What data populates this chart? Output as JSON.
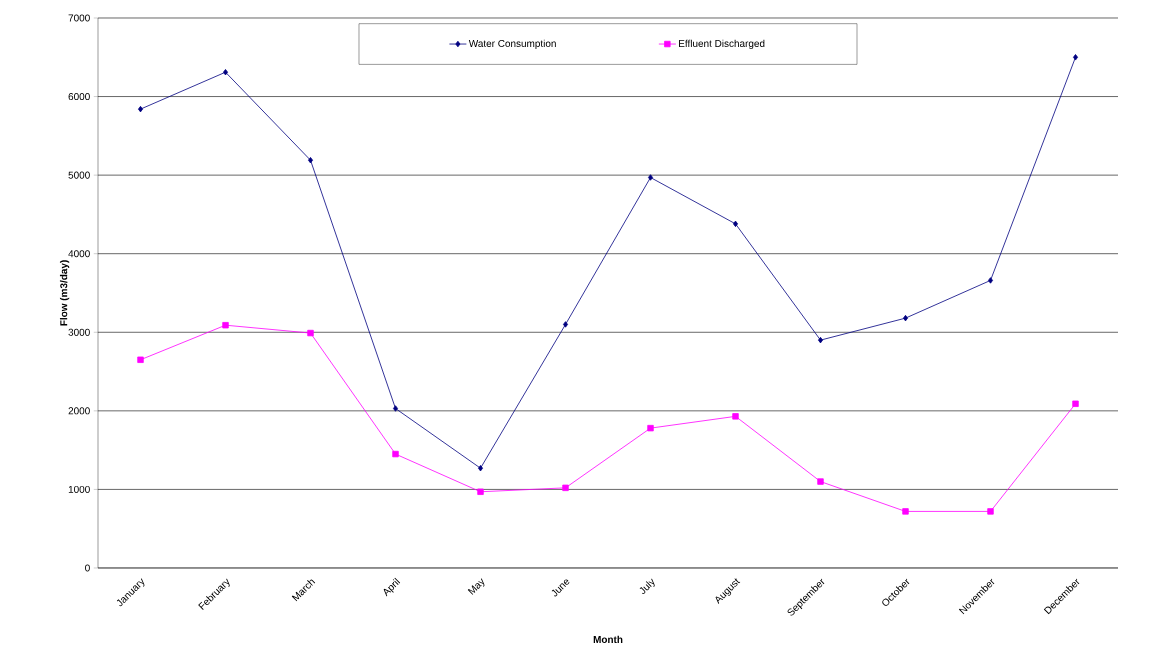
{
  "chart_data": {
    "type": "line",
    "xlabel": "Month",
    "ylabel": "Flow (m3/day)",
    "categories": [
      "January",
      "February",
      "March",
      "April",
      "May",
      "June",
      "July",
      "August",
      "September",
      "October",
      "November",
      "December"
    ],
    "series": [
      {
        "name": "Water Consumption",
        "color": "#000080",
        "marker": "diamond",
        "values": [
          5840,
          6310,
          5190,
          2030,
          1270,
          3100,
          4970,
          4380,
          2900,
          3180,
          3660,
          6500
        ]
      },
      {
        "name": "Effluent Discharged",
        "color": "#ff00ff",
        "marker": "square",
        "values": [
          2650,
          3090,
          2990,
          1450,
          970,
          1020,
          1780,
          1930,
          1100,
          720,
          720,
          2090
        ]
      }
    ],
    "ylim": [
      0,
      7000
    ],
    "yticks": [
      0,
      1000,
      2000,
      3000,
      4000,
      5000,
      6000,
      7000
    ],
    "grid": "y",
    "legend": "top",
    "line_style": "solid"
  }
}
